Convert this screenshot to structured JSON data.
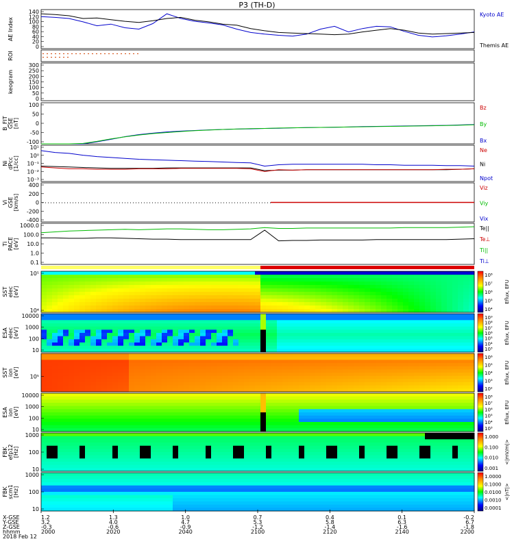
{
  "title": "P3 (TH-D)",
  "chart_data": {
    "type": "line",
    "panels": [
      {
        "id": "ae",
        "ylabel": "AE Index",
        "ylim": [
          0,
          140
        ],
        "yticks": [
          "140",
          "120",
          "100",
          "80",
          "60",
          "40",
          "20",
          "0"
        ],
        "legend": [
          {
            "label": "Kyoto AE",
            "color": "#0000cc"
          },
          {
            "label": "Themis AE",
            "color": "#000000"
          }
        ]
      },
      {
        "id": "roi",
        "ylabel": "ROI",
        "yticks": [],
        "legend": []
      },
      {
        "id": "keogram",
        "ylabel": "keogram",
        "ylim": [
          0,
          300
        ],
        "yticks": [
          "300",
          "250",
          "200",
          "150",
          "100",
          "50",
          "0"
        ],
        "legend": []
      },
      {
        "id": "bfield",
        "ylabel": "B_FIT\nGSE\n[nT]",
        "ylim": [
          -100,
          100
        ],
        "yticks": [
          "100",
          "50",
          "0",
          "-50",
          "-100"
        ],
        "legend": [
          {
            "label": "Bz",
            "color": "#cc0000"
          },
          {
            "label": "By",
            "color": "#00bb00"
          },
          {
            "label": "Bx",
            "color": "#0000cc"
          }
        ]
      },
      {
        "id": "density",
        "ylabel": "Ni\ndPcc\n[1/cc]",
        "yticks": [
          "10¹",
          "10⁰",
          "10⁻¹",
          "10⁻²",
          "10⁻³"
        ],
        "legend": [
          {
            "label": "Ne",
            "color": "#cc0000"
          },
          {
            "label": "Ni",
            "color": "#000000"
          },
          {
            "label": "Npot",
            "color": "#0000cc"
          }
        ]
      },
      {
        "id": "velocity",
        "ylabel": "Vi\nGSE\n[km/s]",
        "ylim": [
          -400,
          400
        ],
        "yticks": [
          "400",
          "200",
          "0",
          "-200",
          "-400"
        ],
        "legend": [
          {
            "label": "Viz",
            "color": "#cc0000"
          },
          {
            "label": "Viy",
            "color": "#00bb00"
          },
          {
            "label": "Vix",
            "color": "#0000cc"
          }
        ]
      },
      {
        "id": "temp",
        "ylabel": "Ti\nPACE\n[eV]",
        "yticks": [
          "1000.0",
          "100.0",
          "10.0",
          "1.0",
          "0.1"
        ],
        "legend": [
          {
            "label": "Te||",
            "color": "#000000"
          },
          {
            "label": "Te⊥",
            "color": "#cc0000"
          },
          {
            "label": "Ti||",
            "color": "#00bb00"
          },
          {
            "label": "Ti⊥",
            "color": "#0000cc"
          }
        ]
      }
    ],
    "spectrograms": [
      {
        "id": "sst_e",
        "ylabel": "SST\nelec\n[eV]",
        "yticks": [
          "10⁵",
          "10⁴"
        ],
        "cbar_label": "Eflux, EFU",
        "cbar_ticks": [
          "10⁸",
          "10⁷",
          "10⁶",
          "10⁵",
          "10⁴"
        ]
      },
      {
        "id": "esa_e",
        "ylabel": "ESA\nelec\n[eV]",
        "yticks": [
          "10000",
          "1000",
          "100",
          "10"
        ],
        "cbar_label": "Eflux, EFU",
        "cbar_ticks": [
          "10⁹",
          "10⁸",
          "10⁷",
          "10⁶",
          "10⁵",
          "10⁴",
          "10³"
        ]
      },
      {
        "id": "sst_i",
        "ylabel": "SST\nion\n[eV]",
        "yticks": [
          "10⁵"
        ],
        "cbar_label": "Eflux, EFU",
        "cbar_ticks": [
          "10⁶",
          "10⁵",
          "10⁴",
          "10³",
          "10²"
        ]
      },
      {
        "id": "esa_i",
        "ylabel": "ESA\nion\n[eV]",
        "yticks": [
          "10000",
          "1000",
          "100",
          "10"
        ],
        "cbar_label": "Eflux, EFU",
        "cbar_ticks": [
          "10⁸",
          "10⁷",
          "10⁶",
          "10⁵",
          "10⁴",
          "10³"
        ]
      },
      {
        "id": "fbk_e",
        "ylabel": "FBK\nefp12\n[Hz]",
        "yticks": [
          "1000",
          "100",
          "10"
        ],
        "cbar_label": "<|mV/m|>",
        "cbar_ticks": [
          "1.000",
          "0.100",
          "0.010",
          "0.001"
        ]
      },
      {
        "id": "fbk_b",
        "ylabel": "FBK\nscm1\n[Hz]",
        "yticks": [
          "1000",
          "100",
          "10"
        ],
        "cbar_label": "<|nT|>",
        "cbar_ticks": [
          "1.0000",
          "0.1000",
          "0.0100",
          "0.0010",
          "0.0001"
        ]
      }
    ],
    "xaxis": {
      "row_labels": [
        "X-GSE",
        "Y-GSE",
        "Z-GSE",
        "hhmm",
        "2018 Feb 12"
      ],
      "columns": [
        {
          "x": "1.2",
          "y": "3.2",
          "z": "-0.3",
          "t": "2000"
        },
        {
          "x": "1.3",
          "y": "4.0",
          "z": "-0.6",
          "t": "2020"
        },
        {
          "x": "1.0",
          "y": "4.7",
          "z": "-0.9",
          "t": "2040"
        },
        {
          "x": "0.7",
          "y": "5.3",
          "z": "-1.2",
          "t": "2100"
        },
        {
          "x": "0.4",
          "y": "5.8",
          "z": "-1.4",
          "t": "2120"
        },
        {
          "x": "0.1",
          "y": "6.3",
          "z": "-1.6",
          "t": "2140"
        },
        {
          "x": "-0.2",
          "y": "6.7",
          "z": "-1.8",
          "t": "2200"
        }
      ]
    },
    "series": {
      "kyoto_ae": [
        115,
        112,
        108,
        96,
        82,
        88,
        75,
        70,
        90,
        125,
        108,
        98,
        92,
        85,
        70,
        58,
        52,
        48,
        45,
        52,
        70,
        80,
        60,
        72,
        80,
        78,
        62,
        48,
        42,
        46,
        52,
        60
      ],
      "themis_ae": [
        125,
        122,
        118,
        108,
        110,
        104,
        98,
        94,
        100,
        108,
        112,
        102,
        96,
        88,
        84,
        72,
        64,
        58,
        56,
        54,
        52,
        50,
        52,
        60,
        66,
        72,
        66,
        56,
        52,
        54,
        56,
        58
      ],
      "bx": [
        -105,
        -104,
        -103,
        -100,
        -90,
        -78,
        -65,
        -55,
        -48,
        -42,
        -38,
        -35,
        -32,
        -30,
        -28,
        -27,
        -25,
        -24,
        -22,
        -21,
        -20,
        -19,
        -18,
        -16,
        -15,
        -14,
        -13,
        -12,
        -11,
        -10,
        -8,
        -6
      ],
      "by": [
        -105,
        -104,
        -102,
        -98,
        -88,
        -76,
        -66,
        -57,
        -50,
        -45,
        -40,
        -36,
        -33,
        -30,
        -28,
        -26,
        -25,
        -23,
        -22,
        -21,
        -20,
        -19,
        -18,
        -17,
        -16,
        -15,
        -14,
        -13,
        -12,
        -11,
        -9,
        -7
      ],
      "ne": [
        -1.4,
        -1.5,
        -1.6,
        -1.6,
        -1.65,
        -1.65,
        -1.65,
        -1.6,
        -1.6,
        -1.6,
        -1.55,
        -1.55,
        -1.55,
        -1.55,
        -1.55,
        -1.6,
        -1.9,
        -1.7,
        -1.75,
        -1.7,
        -1.7,
        -1.7,
        -1.7,
        -1.7,
        -1.7,
        -1.7,
        -1.7,
        -1.7,
        -1.7,
        -1.65,
        -1.65,
        -1.6
      ],
      "ni": [
        -1.3,
        -1.35,
        -1.4,
        -1.45,
        -1.5,
        -1.55,
        -1.55,
        -1.55,
        -1.55,
        -1.5,
        -1.5,
        -1.5,
        -1.5,
        -1.5,
        -1.5,
        -1.5,
        -1.8,
        -1.75,
        -1.75,
        -1.7,
        -1.7,
        -1.7,
        -1.7,
        -1.7,
        -1.7,
        -1.7,
        -1.7,
        -1.7,
        -1.7,
        -1.7,
        -1.65,
        -1.6
      ],
      "npot": [
        0.4,
        0.2,
        0.1,
        -0.1,
        -0.25,
        -0.35,
        -0.45,
        -0.55,
        -0.6,
        -0.65,
        -0.7,
        -0.75,
        -0.8,
        -0.85,
        -0.9,
        -0.95,
        -1.3,
        -1.15,
        -1.1,
        -1.1,
        -1.1,
        -1.1,
        -1.1,
        -1.1,
        -1.15,
        -1.15,
        -1.2,
        -1.2,
        -1.2,
        -1.25,
        -1.25,
        -1.3
      ],
      "ti_par": [
        2.5,
        2.6,
        2.7,
        2.75,
        2.8,
        2.85,
        2.9,
        2.85,
        2.9,
        2.95,
        2.95,
        2.9,
        2.85,
        2.85,
        2.9,
        2.95,
        3.1,
        3.0,
        3.0,
        3.05,
        3.05,
        3.05,
        3.05,
        3.05,
        3.05,
        3.05,
        3.1,
        3.1,
        3.1,
        3.1,
        3.15,
        3.2
      ],
      "te_par": [
        1.9,
        1.9,
        1.85,
        1.85,
        1.9,
        1.9,
        1.85,
        1.8,
        1.75,
        1.75,
        1.7,
        1.7,
        1.7,
        1.7,
        1.7,
        1.7,
        2.8,
        1.55,
        1.6,
        1.6,
        1.65,
        1.65,
        1.65,
        1.65,
        1.7,
        1.7,
        1.7,
        1.7,
        1.7,
        1.7,
        1.75,
        1.8
      ]
    }
  }
}
